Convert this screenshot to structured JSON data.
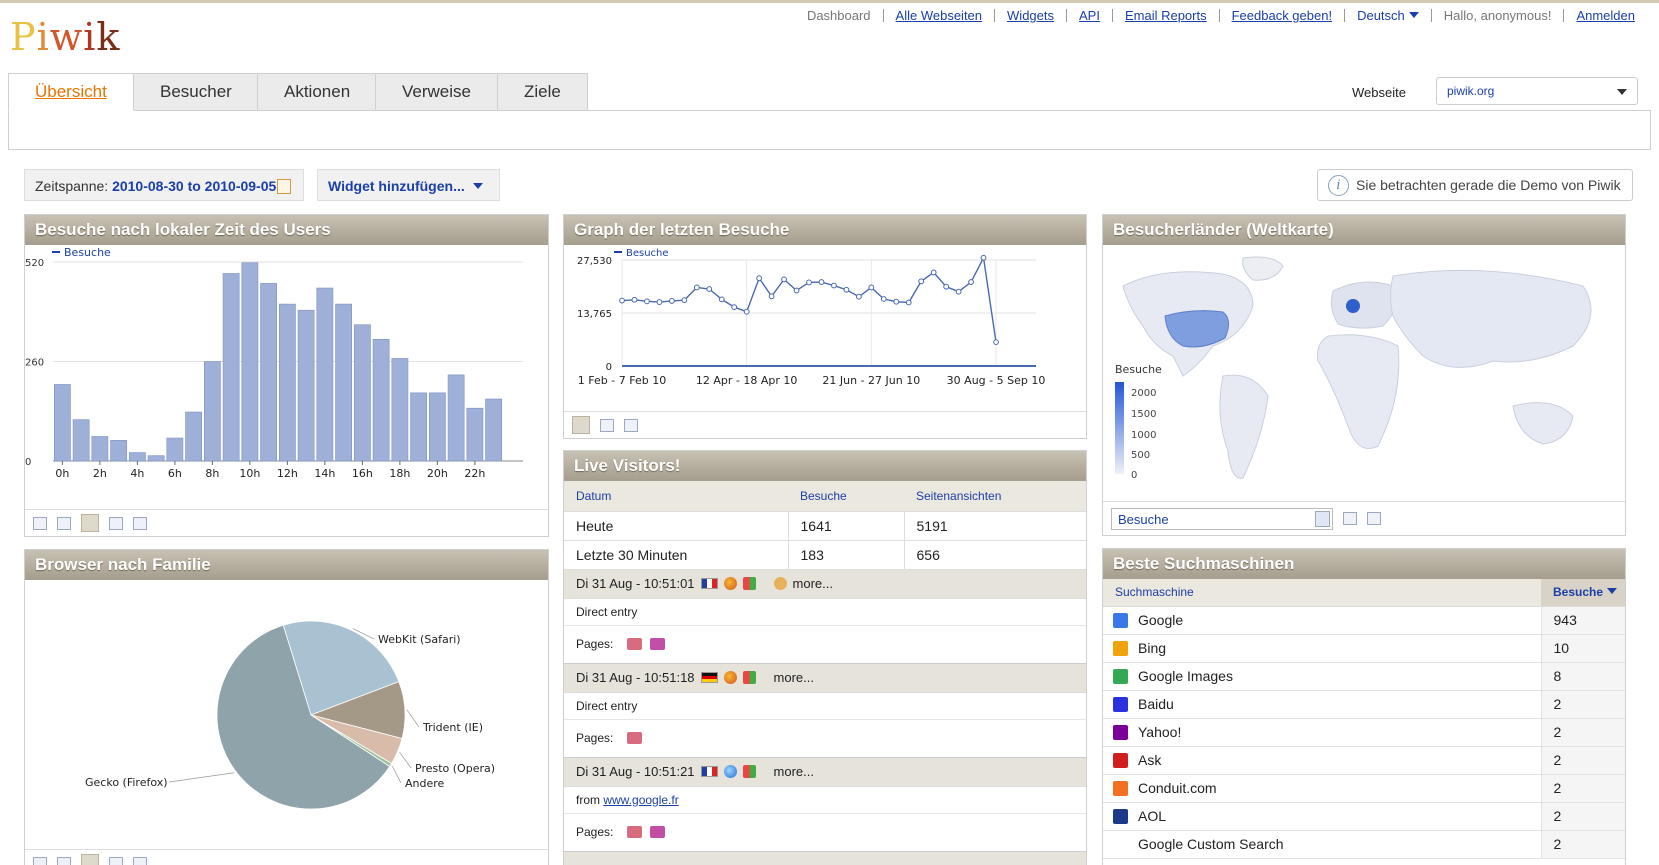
{
  "app": {
    "logo": "Piwik"
  },
  "topnav": {
    "dashboard": "Dashboard",
    "all_sites": "Alle Webseiten",
    "widgets": "Widgets",
    "api": "API",
    "email_reports": "Email Reports",
    "feedback": "Feedback geben!",
    "language": "Deutsch",
    "greeting": "Hallo, anonymous!",
    "login": "Anmelden"
  },
  "tabs": [
    "Übersicht",
    "Besucher",
    "Aktionen",
    "Verweise",
    "Ziele"
  ],
  "site_selector": {
    "label": "Webseite",
    "value": "piwik.org"
  },
  "period": {
    "label": "Zeitspanne:",
    "value": "2010-08-30 to 2010-09-05"
  },
  "add_widget": "Widget hinzufügen...",
  "demo_notice": "Sie betrachten gerade die Demo von Piwik",
  "widgets": {
    "local_time": {
      "title": "Besuche nach lokaler Zeit des Users",
      "legend": "Besuche"
    },
    "browser": {
      "title": "Browser nach Familie"
    },
    "graph_visits": {
      "title": "Graph der letzten Besuche",
      "legend": "Besuche"
    },
    "live": {
      "title": "Live Visitors!",
      "columns": [
        "Datum",
        "Besuche",
        "Seitenansichten"
      ],
      "rows": [
        {
          "label": "Heute",
          "visits": "1641",
          "pageviews": "5191"
        },
        {
          "label": "Letzte 30 Minuten",
          "visits": "183",
          "pageviews": "656"
        }
      ],
      "visits": [
        {
          "time": "Di 31 Aug - 10:51:01",
          "more": "more...",
          "referrer": "Direct entry",
          "referrer_link": "",
          "pages_label": "Pages:"
        },
        {
          "time": "Di 31 Aug - 10:51:18",
          "more": "more...",
          "referrer": "Direct entry",
          "referrer_link": "",
          "pages_label": "Pages:"
        },
        {
          "time": "Di 31 Aug - 10:51:21",
          "more": "more...",
          "referrer": "from",
          "referrer_link": "www.google.fr",
          "pages_label": "Pages:"
        }
      ]
    },
    "world_map": {
      "title": "Besucherländer (Weltkarte)",
      "legend_title": "Besuche",
      "legend_values": [
        "2000",
        "1500",
        "1000",
        "500",
        "0"
      ],
      "metric_select": "Besuche"
    },
    "search_engines": {
      "title": "Beste Suchmaschinen",
      "col_name": "Suchmaschine",
      "col_value": "Besuche",
      "rows": [
        {
          "name": "Google",
          "value": "943",
          "icon": "google-icon",
          "color": "#3b78e7"
        },
        {
          "name": "Bing",
          "value": "10",
          "icon": "bing-icon",
          "color": "#f0a30a"
        },
        {
          "name": "Google Images",
          "value": "8",
          "icon": "google-images-icon",
          "color": "#34a853"
        },
        {
          "name": "Baidu",
          "value": "2",
          "icon": "baidu-icon",
          "color": "#2932e1"
        },
        {
          "name": "Yahoo!",
          "value": "2",
          "icon": "yahoo-icon",
          "color": "#7b0099"
        },
        {
          "name": "Ask",
          "value": "2",
          "icon": "ask-icon",
          "color": "#d11f1f"
        },
        {
          "name": "Conduit.com",
          "value": "2",
          "icon": "conduit-icon",
          "color": "#f36f21"
        },
        {
          "name": "AOL",
          "value": "2",
          "icon": "aol-icon",
          "color": "#1c3a8a"
        },
        {
          "name": "Google Custom Search",
          "value": "2",
          "icon": "google-custom-search-icon",
          "color": "#ffffff"
        }
      ]
    }
  },
  "chart_data": [
    {
      "type": "bar",
      "categories": [
        "0h",
        "1h",
        "2h",
        "3h",
        "4h",
        "5h",
        "6h",
        "7h",
        "8h",
        "9h",
        "10h",
        "11h",
        "12h",
        "13h",
        "14h",
        "15h",
        "16h",
        "17h",
        "18h",
        "19h",
        "20h",
        "21h",
        "22h",
        "23h"
      ],
      "tick_labels": [
        "0h",
        "2h",
        "4h",
        "6h",
        "8h",
        "10h",
        "12h",
        "14h",
        "16h",
        "18h",
        "20h",
        "22h"
      ],
      "series": [
        {
          "name": "Besuche",
          "values": [
            200,
            108,
            64,
            54,
            22,
            14,
            60,
            128,
            260,
            490,
            518,
            464,
            410,
            394,
            452,
            410,
            356,
            318,
            268,
            178,
            178,
            225,
            138,
            162
          ]
        }
      ],
      "ylim": [
        0,
        520
      ],
      "yticks": [
        "0",
        "260",
        "520"
      ],
      "grid": true,
      "color": "#9fb0d8"
    },
    {
      "type": "line",
      "x": [
        "1 Feb - 7 Feb 10",
        "",
        "",
        "",
        "",
        "",
        "",
        "",
        "",
        "",
        "12 Apr - 18 Apr 10",
        "",
        "",
        "",
        "",
        "",
        "",
        "",
        "",
        "",
        "21 Jun - 27 Jun 10",
        "",
        "",
        "",
        "",
        "",
        "",
        "",
        "",
        "",
        "30 Aug - 5 Sep 10"
      ],
      "x_tick_labels": [
        "1 Feb - 7 Feb 10",
        "12 Apr - 18 Apr 10",
        "21 Jun - 27 Jun 10",
        "30 Aug - 5 Sep 10"
      ],
      "series": [
        {
          "name": "Besuche",
          "values": [
            17000,
            17200,
            16800,
            16600,
            16900,
            17100,
            20400,
            20000,
            17300,
            15300,
            14100,
            22800,
            18100,
            22500,
            19600,
            21700,
            21800,
            20900,
            19800,
            18000,
            20400,
            17400,
            16700,
            16500,
            22000,
            24300,
            20600,
            19300,
            21800,
            28100,
            6200
          ]
        }
      ],
      "ylim": [
        0,
        27530
      ],
      "yticks": [
        "0",
        "13,765",
        "27,530"
      ],
      "grid": true,
      "color": "#4a6ab0"
    },
    {
      "type": "pie",
      "labels": [
        "Gecko (Firefox)",
        "WebKit (Safari)",
        "Trident (IE)",
        "Presto (Opera)",
        "Andere"
      ],
      "values": [
        61,
        24,
        9.8,
        4.6,
        0.6
      ],
      "colors": [
        "#8fa3ab",
        "#a9c2d2",
        "#a49986",
        "#d8bca9",
        "#9cc29f"
      ]
    }
  ]
}
